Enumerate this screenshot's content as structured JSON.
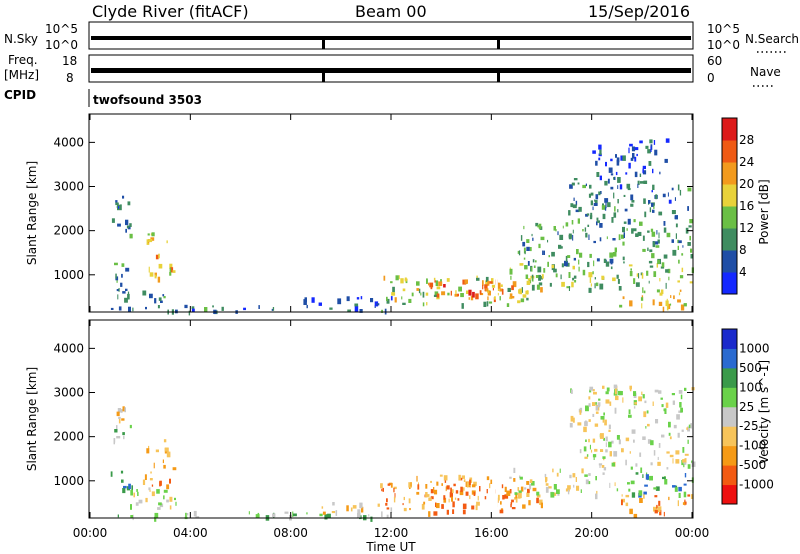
{
  "header": {
    "site": "Clyde River (fitACF)",
    "beam": "Beam 00",
    "date": "15/Sep/2016"
  },
  "strips": {
    "nsky": {
      "left_label": "N.Sky",
      "right_label": "N.Search",
      "left_ticks": [
        "10^5",
        "10^0"
      ],
      "right_ticks": [
        "10^5",
        "10^0"
      ]
    },
    "freq": {
      "left_label": "Freq.",
      "left_unit": "[MHz]",
      "right_label": "Nave",
      "left_ticks": [
        "18",
        "8"
      ],
      "right_ticks": [
        "60",
        "0"
      ]
    },
    "cpid": {
      "label": "CPID",
      "value": "twofsound 3503"
    }
  },
  "colors": {
    "power_scale": [
      "#1428ff",
      "#1f4ea6",
      "#3f8c60",
      "#6abf45",
      "#e8d23a",
      "#f29a1d",
      "#ef5a14",
      "#dd1a1a"
    ],
    "velocity_scale": [
      "#ee1010",
      "#f35a12",
      "#f59a16",
      "#f7c45a",
      "#c8c8c8",
      "#6ad24a",
      "#3a9a4a",
      "#2a6ad0",
      "#1a2acc"
    ],
    "line": "#000000"
  },
  "chart_data": [
    {
      "type": "heatmap",
      "name": "power",
      "title": "",
      "xlabel": "",
      "ylabel": "Slant Range [km]",
      "x_ticks": [
        "00:00",
        "04:00",
        "08:00",
        "12:00",
        "16:00",
        "20:00",
        "00:00"
      ],
      "x_range_hours": [
        0,
        24
      ],
      "y_ticks": [
        1000,
        2000,
        3000,
        4000
      ],
      "y_range_km": [
        180,
        4620
      ],
      "colorbar": {
        "label": "Power [dB]",
        "ticks": [
          "4",
          "8",
          "12",
          "16",
          "20",
          "24",
          "28"
        ],
        "range": [
          0,
          32
        ]
      },
      "regions": [
        {
          "t0": 0.8,
          "t1": 1.7,
          "r0": 800,
          "r1": 1300,
          "v": 11
        },
        {
          "t0": 0.8,
          "t1": 1.6,
          "r0": 1900,
          "r1": 2300,
          "v": 9
        },
        {
          "t0": 1.0,
          "t1": 1.5,
          "r0": 2500,
          "r1": 2800,
          "v": 7
        },
        {
          "t0": 1.0,
          "t1": 1.8,
          "r0": 400,
          "r1": 700,
          "v": 10
        },
        {
          "t0": 2.1,
          "t1": 3.3,
          "r0": 900,
          "r1": 1500,
          "v": 20
        },
        {
          "t0": 2.2,
          "t1": 3.1,
          "r0": 1700,
          "r1": 2100,
          "v": 18
        },
        {
          "t0": 2.0,
          "t1": 3.0,
          "r0": 300,
          "r1": 700,
          "v": 10
        },
        {
          "t0": 0.5,
          "t1": 12.0,
          "r0": 180,
          "r1": 320,
          "v": 8
        },
        {
          "t0": 8.5,
          "t1": 12.0,
          "r0": 300,
          "r1": 520,
          "v": 6
        },
        {
          "t0": 11.5,
          "t1": 18.0,
          "r0": 350,
          "r1": 1000,
          "v": 16
        },
        {
          "t0": 13.0,
          "t1": 17.0,
          "r0": 480,
          "r1": 900,
          "v": 24
        },
        {
          "t0": 14.0,
          "t1": 16.0,
          "r0": 550,
          "r1": 800,
          "v": 28
        },
        {
          "t0": 16.5,
          "t1": 24.0,
          "r0": 700,
          "r1": 1300,
          "v": 14
        },
        {
          "t0": 17.0,
          "t1": 24.0,
          "r0": 1300,
          "r1": 2300,
          "v": 11
        },
        {
          "t0": 19.0,
          "t1": 24.0,
          "r0": 2300,
          "r1": 3200,
          "v": 8
        },
        {
          "t0": 20.0,
          "t1": 23.0,
          "r0": 3200,
          "r1": 4100,
          "v": 5
        },
        {
          "t0": 21.0,
          "t1": 24.0,
          "r0": 250,
          "r1": 700,
          "v": 19
        }
      ]
    },
    {
      "type": "heatmap",
      "name": "velocity",
      "title": "",
      "xlabel": "Time UT",
      "ylabel": "Slant Range [km]",
      "x_ticks": [
        "00:00",
        "04:00",
        "08:00",
        "12:00",
        "16:00",
        "20:00",
        "00:00"
      ],
      "x_range_hours": [
        0,
        24
      ],
      "y_ticks": [
        1000,
        2000,
        3000,
        4000
      ],
      "y_range_km": [
        180,
        4620
      ],
      "colorbar": {
        "label": "Velocity [m s^-1]",
        "ticks": [
          "1000",
          "500",
          "100",
          "25",
          "-25",
          "-100",
          "-500",
          "-1000"
        ]
      },
      "regions": [
        {
          "t0": 0.8,
          "t1": 1.7,
          "r0": 800,
          "r1": 1300,
          "v": 6
        },
        {
          "t0": 0.8,
          "t1": 1.6,
          "r0": 1900,
          "r1": 2300,
          "v": 5
        },
        {
          "t0": 1.0,
          "t1": 1.5,
          "r0": 2400,
          "r1": 2700,
          "v": 3
        },
        {
          "t0": 2.1,
          "t1": 3.3,
          "r0": 900,
          "r1": 1500,
          "v": 2
        },
        {
          "t0": 2.2,
          "t1": 3.1,
          "r0": 1600,
          "r1": 2100,
          "v": 3
        },
        {
          "t0": 1.5,
          "t1": 3.5,
          "r0": 300,
          "r1": 900,
          "v": 4
        },
        {
          "t0": 0.5,
          "t1": 12.0,
          "r0": 180,
          "r1": 320,
          "v": 5
        },
        {
          "t0": 8.5,
          "t1": 12.0,
          "r0": 300,
          "r1": 520,
          "v": 3
        },
        {
          "t0": 11.5,
          "t1": 18.0,
          "r0": 300,
          "r1": 1000,
          "v": 2
        },
        {
          "t0": 13.0,
          "t1": 17.0,
          "r0": 550,
          "r1": 1150,
          "v": 2
        },
        {
          "t0": 16.5,
          "t1": 21.0,
          "r0": 700,
          "r1": 1300,
          "v": 4
        },
        {
          "t0": 19.5,
          "t1": 24.0,
          "r0": 1300,
          "r1": 2300,
          "v": 4
        },
        {
          "t0": 21.0,
          "t1": 24.0,
          "r0": 700,
          "r1": 1200,
          "v": 6
        },
        {
          "t0": 19.0,
          "t1": 24.0,
          "r0": 2300,
          "r1": 3200,
          "v": 4
        },
        {
          "t0": 21.0,
          "t1": 24.0,
          "r0": 250,
          "r1": 700,
          "v": 2
        }
      ]
    }
  ]
}
